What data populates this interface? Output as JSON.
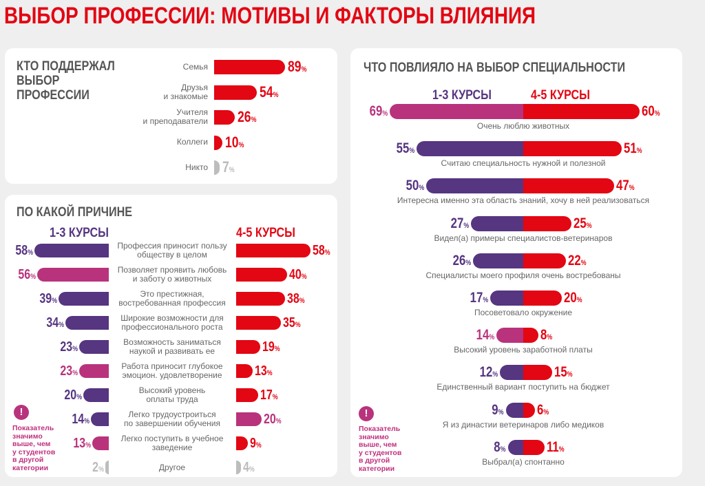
{
  "title": "ВЫБОР ПРОФЕССИИ: МОТИВЫ И ФАКТОРЫ ВЛИЯНИЯ",
  "colors": {
    "red": "#e30613",
    "purple": "#563581",
    "magenta": "#b8337c",
    "gray": "#bdbdbd"
  },
  "pct": "%",
  "chart_data": [
    {
      "type": "bar",
      "title": "КТО ПОДДЕРЖАЛ ВЫБОР ПРОФЕССИИ",
      "title_lines": [
        "КТО ПОДДЕРЖАЛ",
        "ВЫБОР",
        "ПРОФЕССИИ"
      ],
      "categories": [
        [
          "Семья"
        ],
        [
          "Друзья",
          "и знакомые"
        ],
        [
          "Учителя",
          "и преподаватели"
        ],
        [
          "Коллеги"
        ],
        [
          "Никто"
        ]
      ],
      "values": [
        89,
        54,
        26,
        10,
        7
      ],
      "colors": [
        "red",
        "red",
        "red",
        "red",
        "gray"
      ]
    },
    {
      "type": "bar",
      "title": "ПО КАКОЙ ПРИЧИНЕ",
      "series_labels": [
        "1-3 КУРСЫ",
        "4-5 КУРСЫ"
      ],
      "categories": [
        [
          "Профессия приносит пользу",
          "обществу в целом"
        ],
        [
          "Позволяет проявить любовь",
          "и заботу о животных"
        ],
        [
          "Это престижная,",
          "востребованная профессия"
        ],
        [
          "Широкие возможности для",
          "профессионального роста"
        ],
        [
          "Возможность заниматься",
          "наукой и развивать ее"
        ],
        [
          "Работа приносит глубокое",
          "эмоцион. удовлетворение"
        ],
        [
          "Высокий уровень",
          "оплаты труда"
        ],
        [
          "Легко трудоустроиться",
          "по завершении обучения"
        ],
        [
          "Легко поступить в учебное",
          "заведение"
        ],
        [
          "Другое"
        ]
      ],
      "series": [
        {
          "name": "1-3 КУРСЫ",
          "values": [
            58,
            56,
            39,
            34,
            23,
            23,
            20,
            14,
            13,
            2
          ],
          "colors": [
            "purple",
            "magenta",
            "purple",
            "purple",
            "purple",
            "magenta",
            "purple",
            "purple",
            "magenta",
            "gray"
          ]
        },
        {
          "name": "4-5 КУРСЫ",
          "values": [
            58,
            40,
            38,
            35,
            19,
            13,
            17,
            20,
            9,
            4
          ],
          "colors": [
            "red",
            "red",
            "red",
            "red",
            "red",
            "red",
            "red",
            "magenta",
            "red",
            "gray"
          ]
        }
      ],
      "note": [
        "Показатель",
        "значимо",
        "выше, чем",
        "у студентов",
        "в другой",
        "категории"
      ]
    },
    {
      "type": "bar",
      "title": "ЧТО ПОВЛИЯЛО НА ВЫБОР СПЕЦИАЛЬНОСТИ",
      "series_labels": [
        "1-3 КУРСЫ",
        "4-5 КУРСЫ"
      ],
      "categories": [
        "Очень люблю животных",
        "Считаю специальность нужной и полезной",
        "Интересна именно эта область знаний, хочу в ней реализоваться",
        "Видел(а) примеры специалистов-ветеринаров",
        "Специалисты моего профиля очень востребованы",
        "Посоветовало окружение",
        "Высокий уровень заработной платы",
        "Единственный вариант поступить на бюджет",
        "Я из династии ветеринаров либо медиков",
        "Выбрал(а) спонтанно"
      ],
      "series": [
        {
          "name": "1-3 КУРСЫ",
          "values": [
            69,
            55,
            50,
            27,
            26,
            17,
            14,
            12,
            9,
            8
          ],
          "colors": [
            "magenta",
            "purple",
            "purple",
            "purple",
            "purple",
            "purple",
            "magenta",
            "purple",
            "purple",
            "purple"
          ]
        },
        {
          "name": "4-5 КУРСЫ",
          "values": [
            60,
            51,
            47,
            25,
            22,
            20,
            8,
            15,
            6,
            11
          ],
          "colors": [
            "red",
            "red",
            "red",
            "red",
            "red",
            "red",
            "red",
            "red",
            "red",
            "red"
          ]
        }
      ],
      "note": [
        "Показатель",
        "значимо",
        "выше, чем",
        "у студентов",
        "в другой",
        "категории"
      ]
    }
  ]
}
